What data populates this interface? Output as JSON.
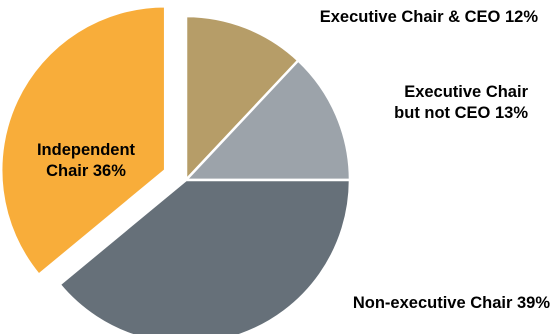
{
  "chart_data": {
    "type": "pie",
    "title": "",
    "slices": [
      {
        "label_lines": [
          "Executive Chair & CEO  12%"
        ],
        "value": 12,
        "color": "#b69d68",
        "exploded": false
      },
      {
        "label_lines": [
          "Executive Chair",
          "but not CEO  13%"
        ],
        "value": 13,
        "color": "#9ca3aa",
        "exploded": false
      },
      {
        "label_lines": [
          "Non-executive Chair  39%"
        ],
        "value": 39,
        "color": "#667079",
        "exploded": false
      },
      {
        "label_lines": [
          "Independent",
          "Chair  36%"
        ],
        "value": 36,
        "color": "#f8ad3a",
        "exploded": true
      }
    ]
  }
}
